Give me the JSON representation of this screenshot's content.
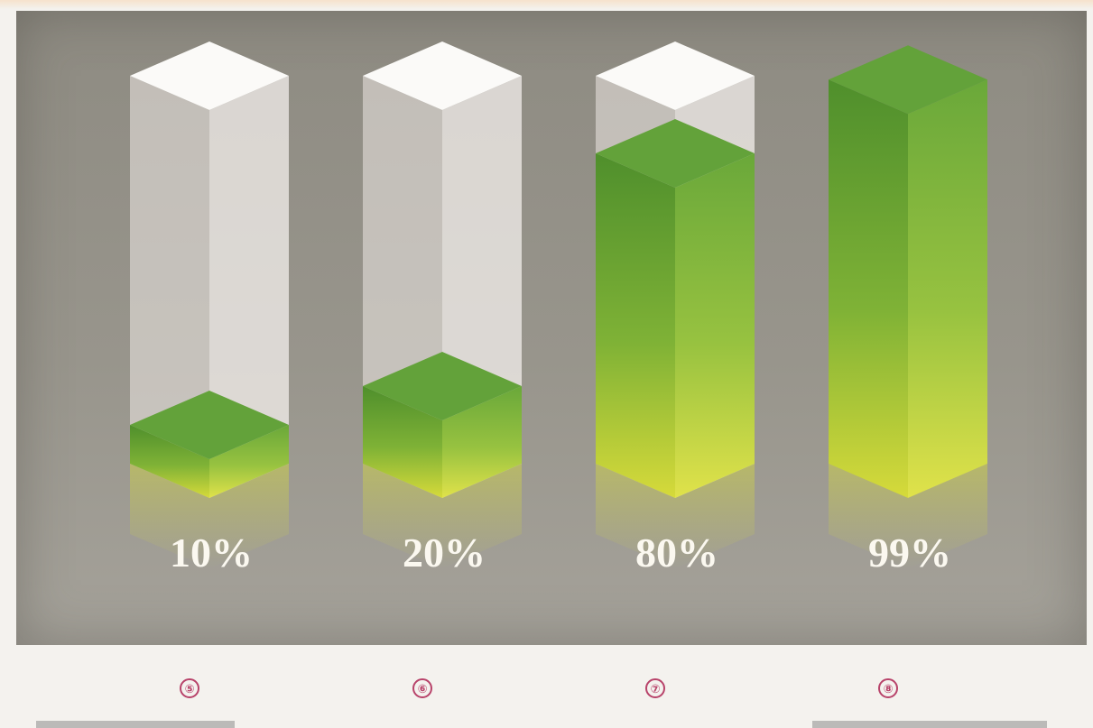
{
  "chart_data": {
    "type": "bar",
    "style": "3d-columns",
    "categories": [
      "⑤",
      "⑥",
      "⑦",
      "⑧"
    ],
    "values": [
      10,
      20,
      80,
      99
    ],
    "labels": [
      "10%",
      "20%",
      "80%",
      "99%"
    ],
    "ylim": [
      0,
      100
    ],
    "title": "",
    "xlabel": "",
    "ylabel": "",
    "grid": false,
    "legend": "none"
  },
  "markers": [
    "⑤",
    "⑥",
    "⑦",
    "⑧"
  ],
  "colors": {
    "background": "#95928a",
    "fill_top": "#5f9e35",
    "fill_bottom": "#d7dc3a",
    "empty_column": "#ece8e4",
    "marker": "#b8436a",
    "label": "#fbf8f0"
  }
}
